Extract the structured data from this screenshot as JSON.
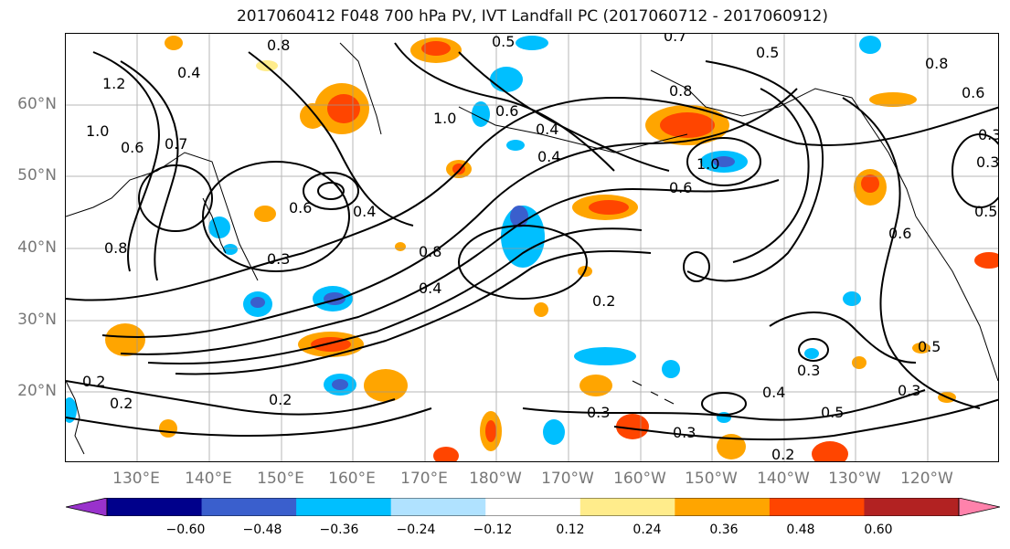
{
  "title": "2017060412 F048 700 hPa PV, IVT Landfall PC (2017060712 - 2017060912)",
  "lat_labels": [
    "60°N",
    "50°N",
    "40°N",
    "30°N",
    "20°N"
  ],
  "lon_labels": [
    "130°E",
    "140°E",
    "150°E",
    "160°E",
    "170°E",
    "180°W",
    "170°W",
    "160°W",
    "150°W",
    "140°W",
    "130°W",
    "120°W"
  ],
  "colorbar": {
    "tick_labels": [
      "−0.60",
      "−0.48",
      "−0.36",
      "−0.24",
      "−0.12",
      "0.12",
      "0.24",
      "0.36",
      "0.48",
      "0.60"
    ],
    "colors": [
      "#9932CC",
      "#00008B",
      "#3A5FCD",
      "#00BFFF",
      "#B0E2FF",
      "#FFFFFF",
      "#FFEC8B",
      "#FFA500",
      "#FF4500",
      "#B22222",
      "#FF82AB"
    ]
  },
  "contour_labels": [
    "0.8",
    "0.5",
    "0.7",
    "0.5",
    "0.8",
    "0.6",
    "0.4",
    "1.2",
    "1.0",
    "0.4",
    "1.0",
    "0.7",
    "0.6",
    "0.6",
    "0.4",
    "0.8",
    "1.0",
    "0.4",
    "0.6",
    "0.3",
    "0.8",
    "0.4",
    "0.2",
    "0.2",
    "0.2",
    "0.2",
    "0.3",
    "0.3",
    "0.4",
    "0.3",
    "0.5",
    "0.3",
    "0.2",
    "0.5",
    "0.3",
    "0.6",
    "0.5",
    "0.3",
    "0.8",
    "0.6"
  ]
}
